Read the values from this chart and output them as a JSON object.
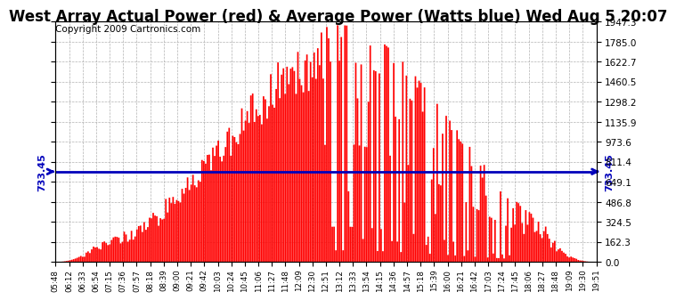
{
  "title": "West Array Actual Power (red) & Average Power (Watts blue) Wed Aug 5 20:07",
  "copyright": "Copyright 2009 Cartronics.com",
  "avg_power": 733.45,
  "ymax": 1947.3,
  "yticks": [
    0.0,
    162.3,
    324.5,
    486.8,
    649.1,
    811.4,
    973.6,
    1135.9,
    1298.2,
    1460.5,
    1622.7,
    1785.0,
    1947.3
  ],
  "xtick_labels": [
    "05:48",
    "06:12",
    "06:33",
    "06:54",
    "07:15",
    "07:36",
    "07:57",
    "08:18",
    "08:39",
    "09:00",
    "09:21",
    "09:42",
    "10:03",
    "10:24",
    "10:45",
    "11:06",
    "11:27",
    "11:48",
    "12:09",
    "12:30",
    "12:51",
    "13:12",
    "13:33",
    "13:54",
    "14:15",
    "14:36",
    "14:57",
    "15:18",
    "15:39",
    "16:00",
    "16:21",
    "16:42",
    "17:03",
    "17:24",
    "17:45",
    "18:06",
    "18:27",
    "18:48",
    "19:09",
    "19:30",
    "19:51"
  ],
  "bar_color": "#FF0000",
  "avg_line_color": "#0000BB",
  "background_color": "#FFFFFF",
  "grid_color": "#AAAAAA",
  "title_fontsize": 12,
  "copyright_fontsize": 7.5,
  "peak_hour": 13.2,
  "sigma": 2.8,
  "peak_value": 1920,
  "start_hour": 5.8,
  "end_hour": 19.85
}
